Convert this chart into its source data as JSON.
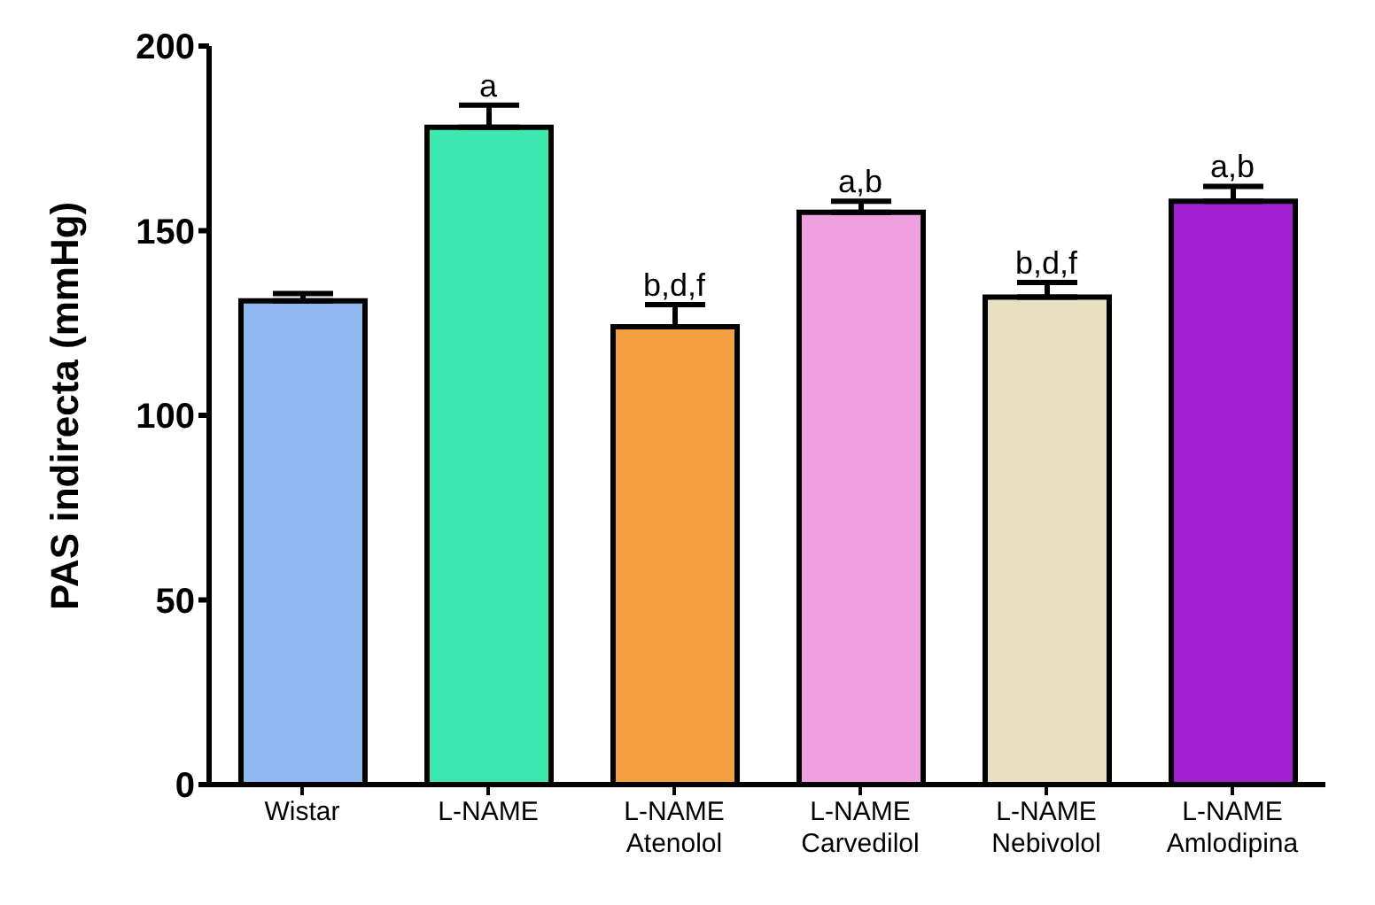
{
  "chart_data": {
    "type": "bar",
    "ylabel": "PAS indirecta (mmHg)",
    "categories": [
      "Wistar",
      "L-NAME",
      "L-NAME\nAtenolol",
      "L-NAME\nCarvedilol",
      "L-NAME\nNebivolol",
      "L-NAME\nAmlodipina"
    ],
    "values": [
      131,
      178,
      124,
      155,
      132,
      158
    ],
    "errors": [
      [
        131,
        133
      ],
      [
        178,
        184
      ],
      [
        124,
        130
      ],
      [
        155,
        158
      ],
      [
        132,
        136
      ],
      [
        158,
        162
      ]
    ],
    "value_labels": [
      null,
      "a",
      "b,d,f",
      "a,b",
      "b,d,f",
      "a,b"
    ],
    "colors": [
      "#8fb8f0",
      "#3de8b0",
      "#f5a040",
      "#f0a0e0",
      "#e8e0c0",
      "#a020d0"
    ],
    "ylim": [
      0,
      200
    ],
    "yticks": [
      0,
      50,
      100,
      150,
      200
    ],
    "grid": false,
    "legend": false
  }
}
